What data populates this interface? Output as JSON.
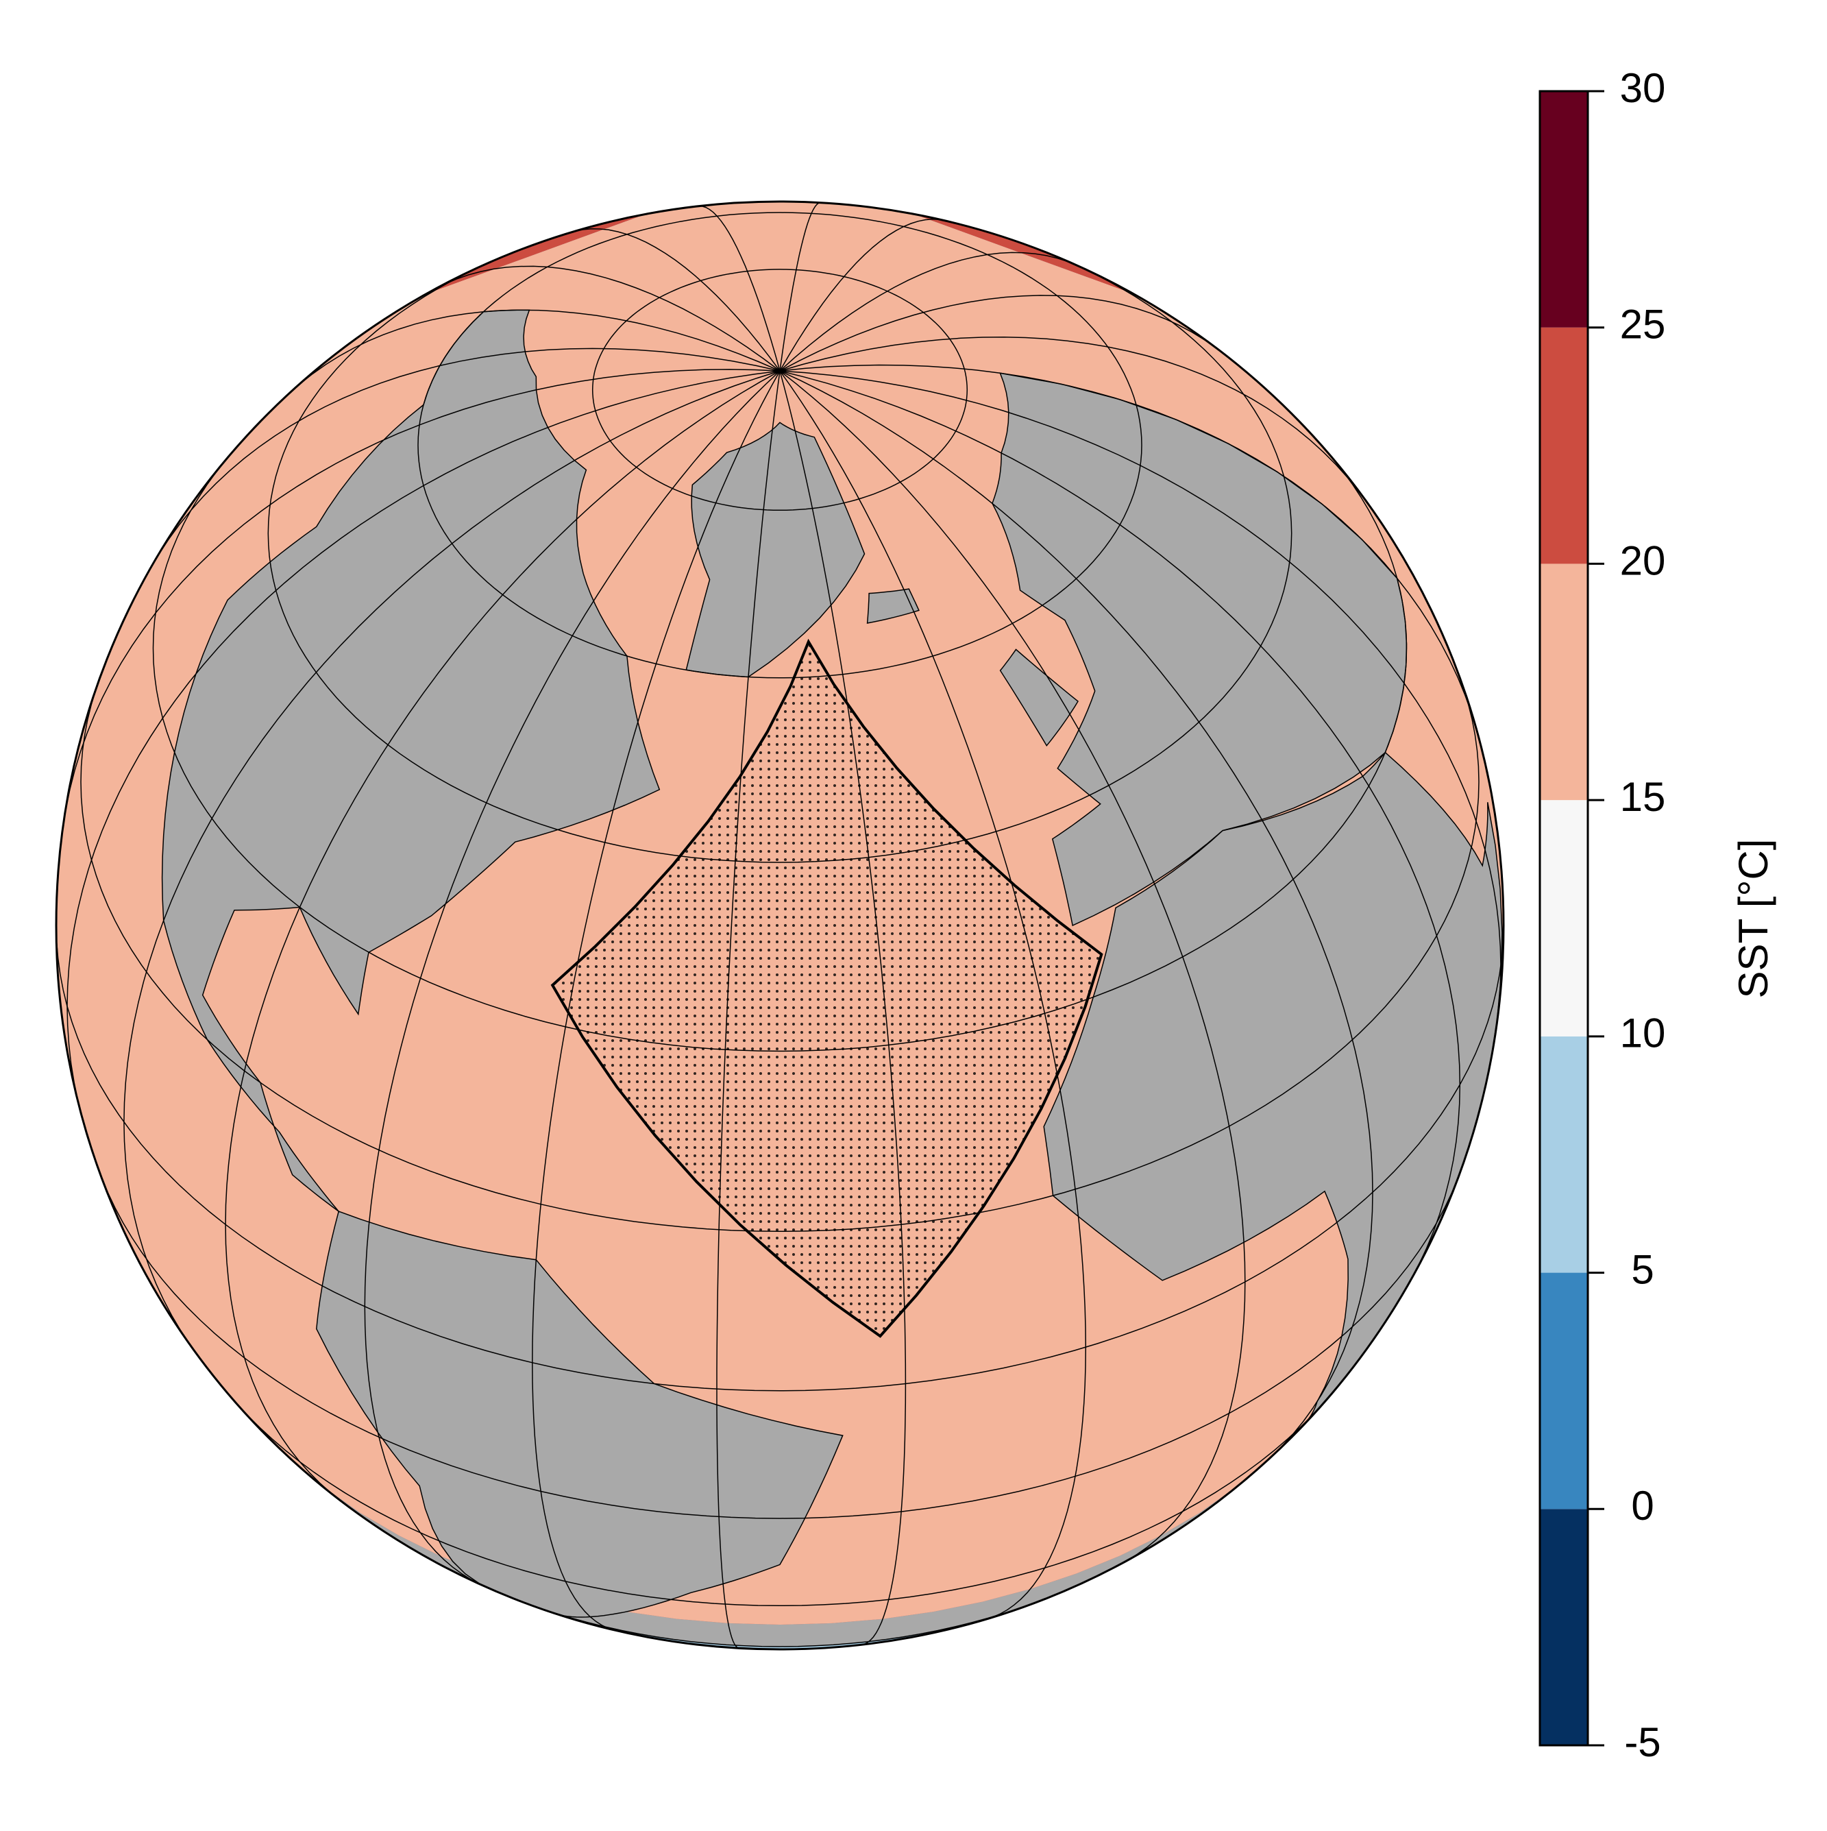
{
  "chart_data": {
    "type": "map",
    "colorbar": {
      "label": "SST [°C]",
      "ticks": [
        -5,
        0,
        5,
        10,
        15,
        20,
        25,
        30
      ],
      "colors": [
        "#053061",
        "#3886bf",
        "#a8cfe5",
        "#f7f7f7",
        "#f4b59b",
        "#cc4c40",
        "#67001f"
      ]
    }
  }
}
